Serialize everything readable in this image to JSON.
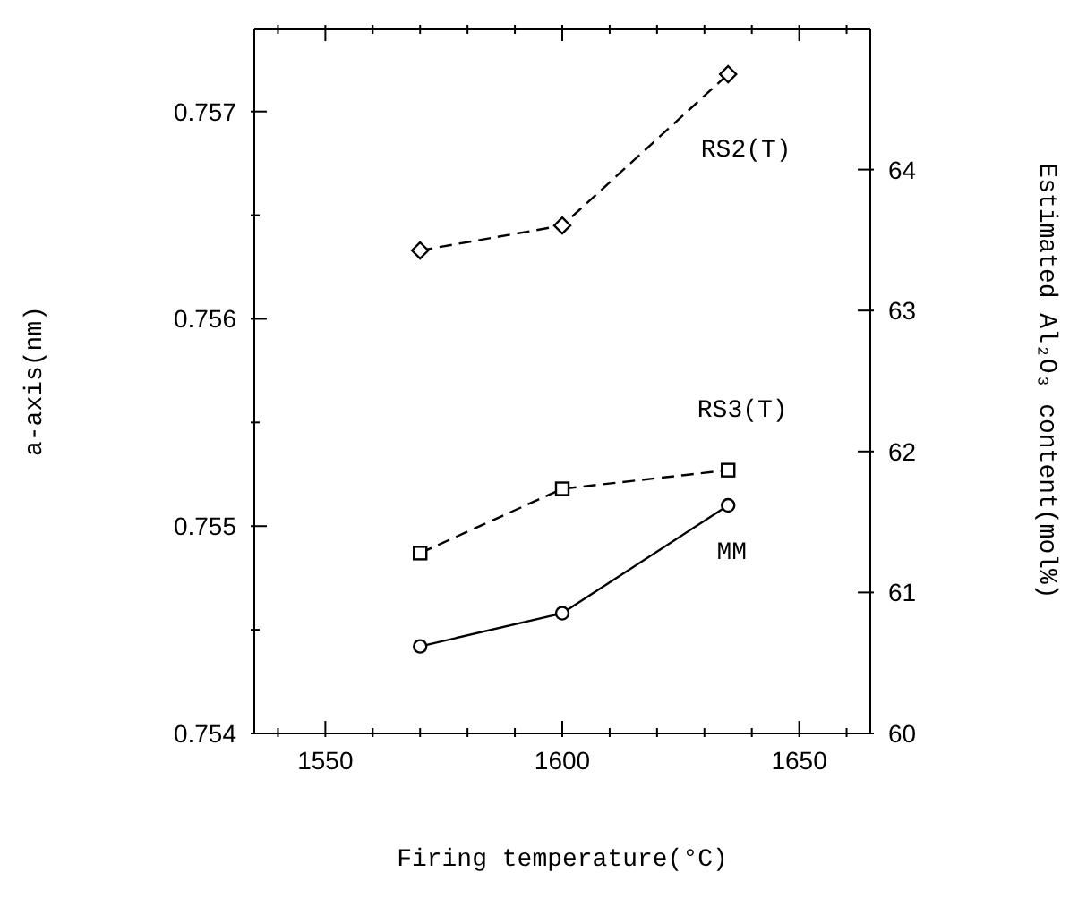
{
  "chart_data": {
    "type": "line",
    "xlabel": "Firing temperature(°C)",
    "ylabel": "a-axis(nm)",
    "y2label": "Estimated Al₂O₃ content(mol%)",
    "x": [
      1570,
      1600,
      1635
    ],
    "series": [
      {
        "name": "RS2(T)",
        "color": "#000000",
        "values": [
          0.75633,
          0.75645,
          0.75718
        ],
        "marker": "diamond",
        "line_style": "dashed"
      },
      {
        "name": "RS3(T)",
        "color": "#000000",
        "values": [
          0.75487,
          0.75518,
          0.75527
        ],
        "marker": "square",
        "line_style": "dashed"
      },
      {
        "name": "MM",
        "color": "#000000",
        "values": [
          0.75442,
          0.75458,
          0.7551
        ],
        "marker": "circle",
        "line_style": "solid"
      }
    ],
    "xlim": [
      1535,
      1665
    ],
    "xticks": [
      {
        "value": 1540,
        "label": null
      },
      1550,
      {
        "value": 1560,
        "label": null
      },
      {
        "value": 1570,
        "label": null
      },
      {
        "value": 1580,
        "label": null
      },
      {
        "value": 1590,
        "label": null
      },
      1600,
      {
        "value": 1610,
        "label": null
      },
      {
        "value": 1620,
        "label": null
      },
      {
        "value": 1630,
        "label": null
      },
      {
        "value": 1640,
        "label": null
      },
      1650,
      {
        "value": 1660,
        "label": null
      }
    ],
    "ylim": [
      0.754,
      0.7574
    ],
    "yticks": [
      0.754,
      {
        "value": 0.7545,
        "label": null
      },
      0.755,
      {
        "value": 0.7555,
        "label": null
      },
      0.756,
      {
        "value": 0.7565,
        "label": null
      },
      0.757
    ],
    "y2lim": [
      60,
      65
    ],
    "y2ticks": [
      60,
      61,
      62,
      63,
      64
    ]
  }
}
